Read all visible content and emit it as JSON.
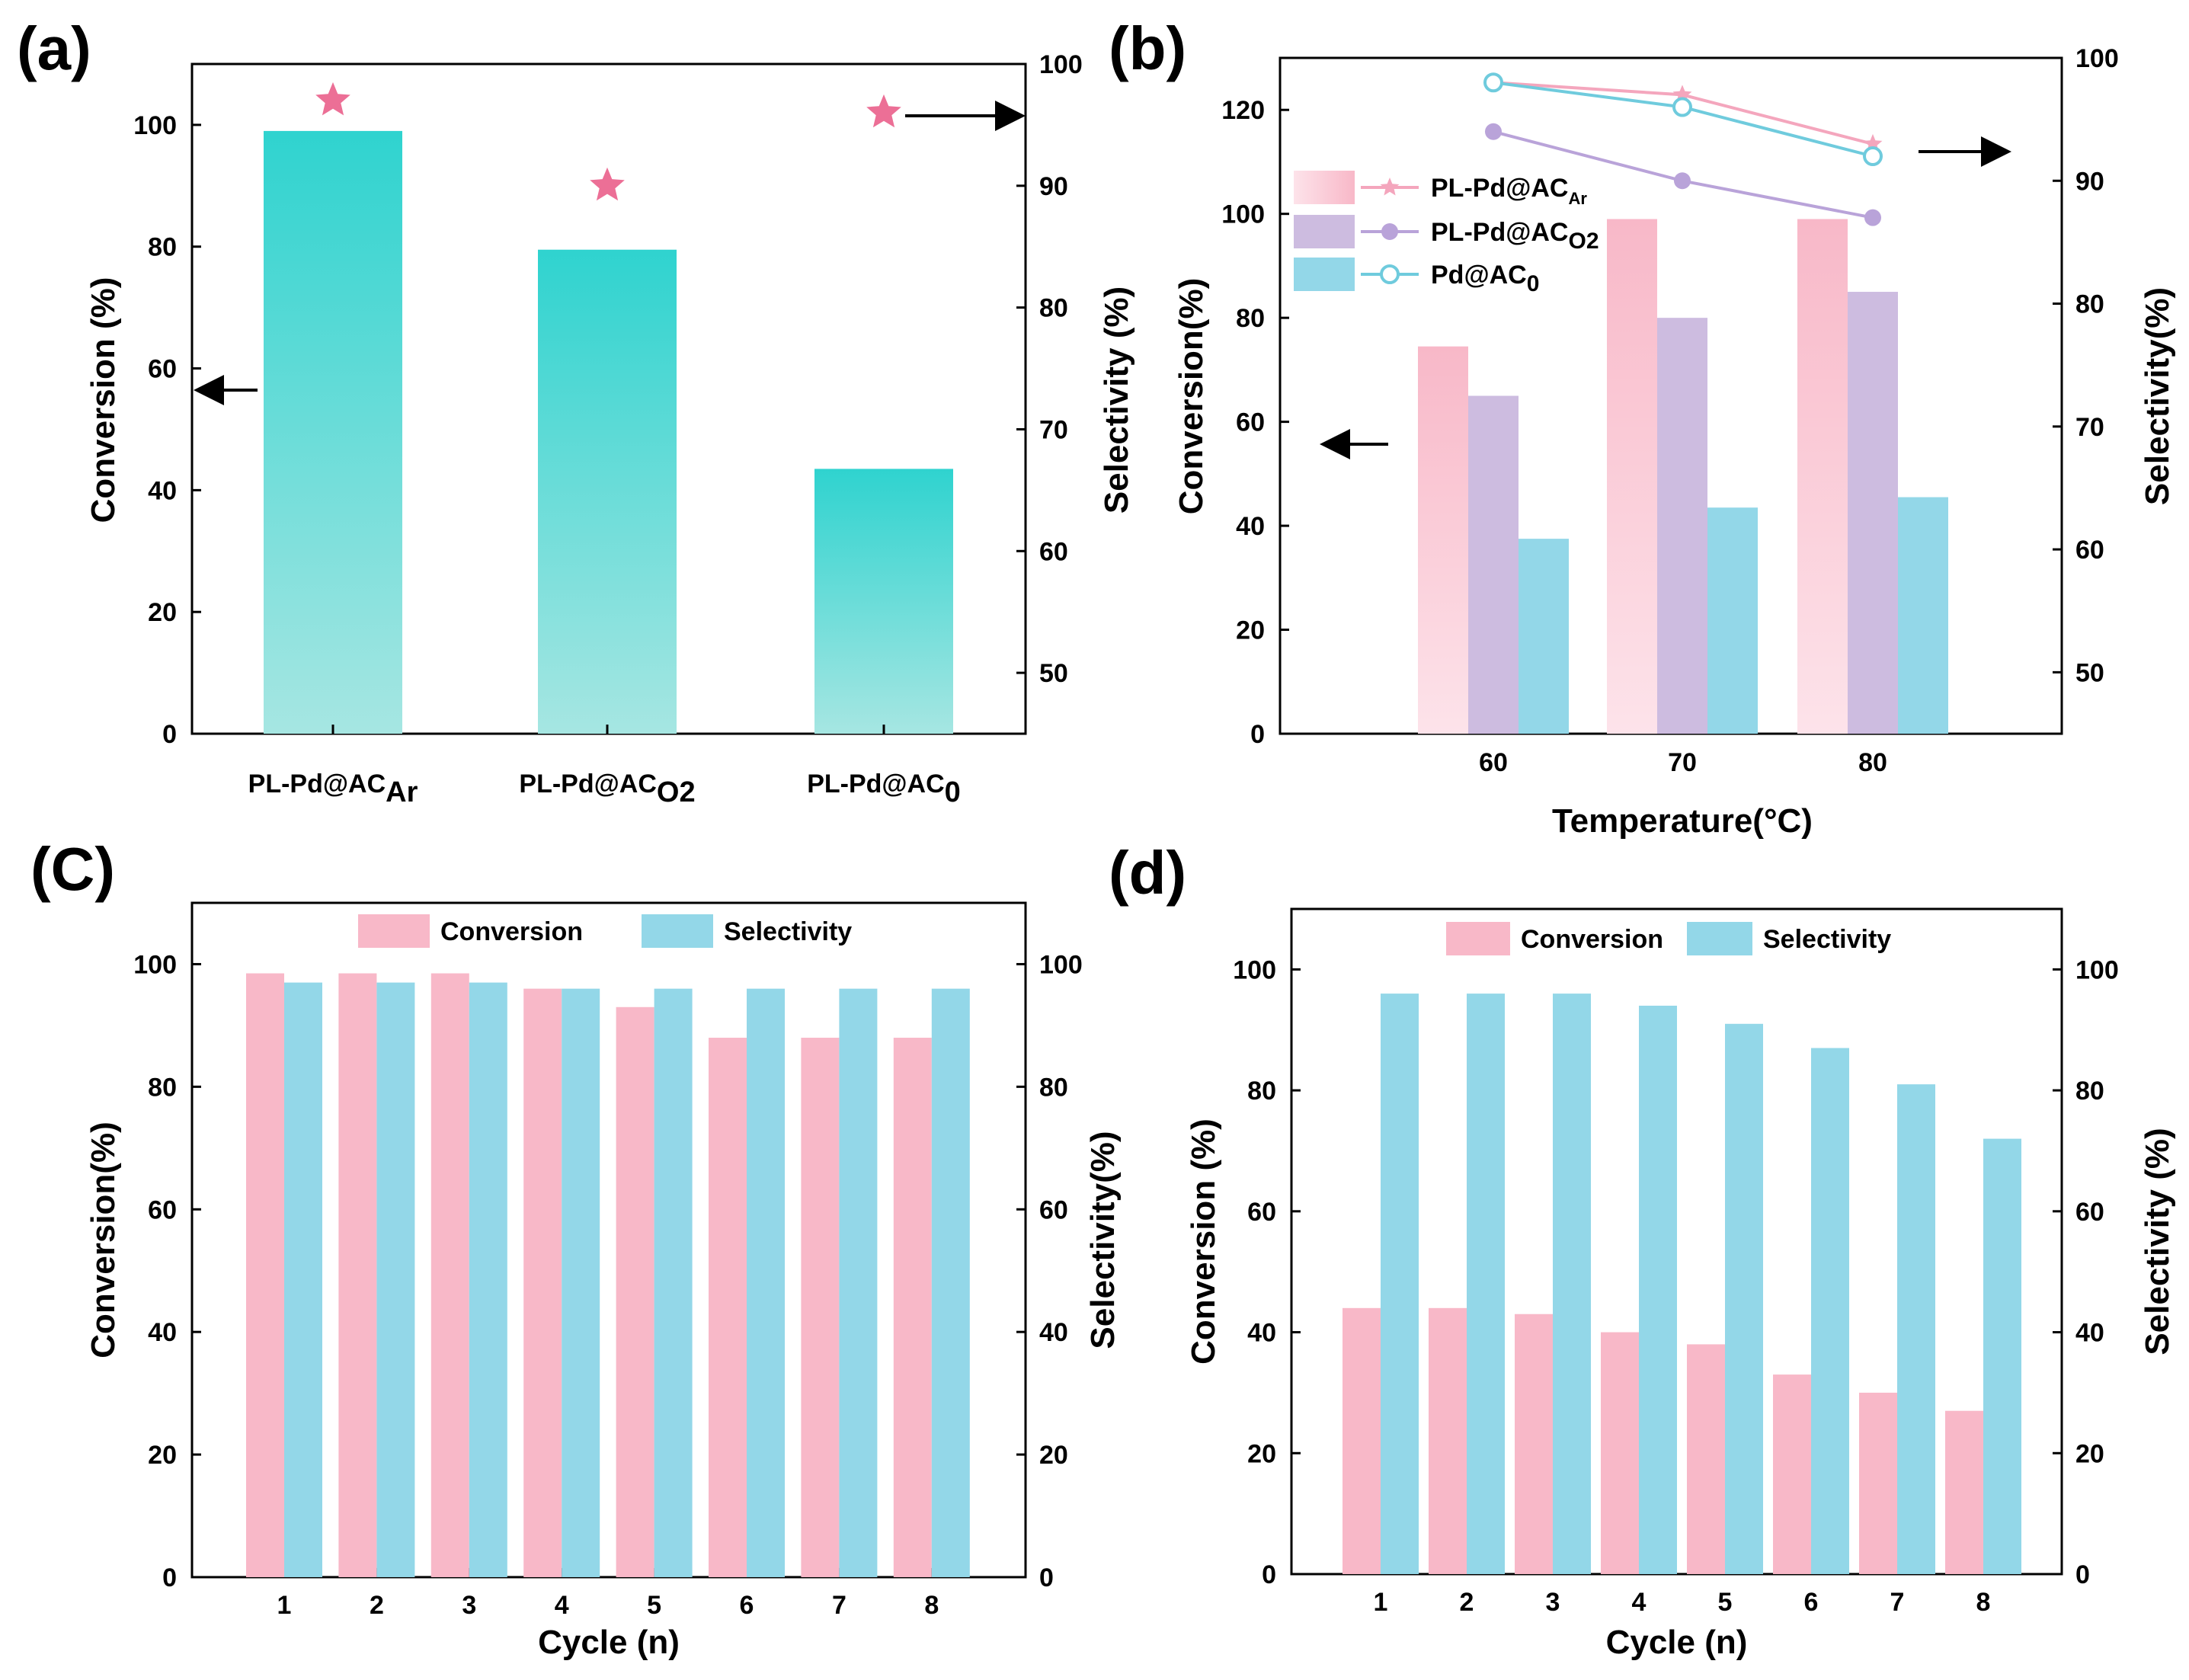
{
  "panels": {
    "a": {
      "label": "(a)"
    },
    "b": {
      "label": "(b)"
    },
    "c": {
      "label": "(C)"
    },
    "d": {
      "label": "(d)"
    }
  },
  "colors": {
    "pink": "#f8b8c8",
    "purple": "#cdbce0",
    "blue": "#93d7e8",
    "teal": "#2fd3cf",
    "teal_light": "#a6e6e2",
    "star": "#ec6f96",
    "line_pink": "#f4a6bd",
    "line_purple": "#b9a3d9",
    "line_blue": "#6fcbdd"
  },
  "chart_data": [
    {
      "id": "a",
      "type": "bar",
      "categories": [
        {
          "main": "PL-Pd@AC",
          "sub": "Ar"
        },
        {
          "main": "PL-Pd@AC",
          "sub": "O2"
        },
        {
          "main": "PL-Pd@AC",
          "sub": "0"
        }
      ],
      "conversion": [
        99,
        79.5,
        43.5
      ],
      "selectivity": [
        97,
        90,
        96
      ],
      "ylabel": "Conversion (%)",
      "ylabel_right": "Selectivity (%)",
      "ylim": [
        0,
        110
      ],
      "ylim_right": [
        45,
        100
      ],
      "yticks": [
        0,
        20,
        40,
        60,
        80,
        100
      ],
      "yticks_right": [
        50,
        60,
        70,
        80,
        90,
        100
      ]
    },
    {
      "id": "b",
      "type": "bar+line",
      "categories": [
        "60",
        "70",
        "80"
      ],
      "xlabel": "Temperature(°C)",
      "ylabel": "Conversion(%)",
      "ylabel_right": "Selectivity(%)",
      "ylim": [
        0,
        130
      ],
      "ylim_right": [
        45,
        100
      ],
      "yticks": [
        0,
        20,
        40,
        60,
        80,
        100,
        120
      ],
      "yticks_right": [
        50,
        60,
        70,
        80,
        90,
        100
      ],
      "series": [
        {
          "name": "PL-Pd@AC",
          "sub": "Ar",
          "conversion": [
            74.5,
            99,
            99
          ],
          "selectivity": [
            98,
            97,
            93
          ]
        },
        {
          "name": "PL-Pd@AC",
          "sub": "O2",
          "conversion": [
            65,
            80,
            85
          ],
          "selectivity": [
            94,
            90,
            87
          ]
        },
        {
          "name": "Pd@AC",
          "sub": "0",
          "conversion": [
            37.5,
            43.5,
            45.5
          ],
          "selectivity": [
            98,
            96,
            92
          ]
        }
      ]
    },
    {
      "id": "c",
      "type": "bar",
      "categories": [
        "1",
        "2",
        "3",
        "4",
        "5",
        "6",
        "7",
        "8"
      ],
      "xlabel": "Cycle (n)",
      "ylabel": "Conversion(%)",
      "ylabel_right": "Selectivity(%)",
      "ylim": [
        0,
        110
      ],
      "yticks": [
        0,
        20,
        40,
        60,
        80,
        100
      ],
      "legend": [
        "Conversion",
        "Selectivity"
      ],
      "series": [
        {
          "name": "Conversion",
          "values": [
            98.5,
            98.5,
            98.5,
            96,
            93,
            88,
            88,
            88
          ]
        },
        {
          "name": "Selectivity",
          "values": [
            97,
            97,
            97,
            96,
            96,
            96,
            96,
            96
          ]
        }
      ]
    },
    {
      "id": "d",
      "type": "bar",
      "categories": [
        "1",
        "2",
        "3",
        "4",
        "5",
        "6",
        "7",
        "8"
      ],
      "xlabel": "Cycle (n)",
      "ylabel": "Conversion (%)",
      "ylabel_right": "Selectivity (%)",
      "ylim": [
        0,
        110
      ],
      "yticks": [
        0,
        20,
        40,
        60,
        80,
        100
      ],
      "legend": [
        "Conversion",
        "Selectivity"
      ],
      "series": [
        {
          "name": "Conversion",
          "values": [
            44,
            44,
            43,
            40,
            38,
            33,
            30,
            27
          ]
        },
        {
          "name": "Selectivity",
          "values": [
            96,
            96,
            96,
            94,
            91,
            87,
            81,
            72
          ]
        }
      ]
    }
  ]
}
